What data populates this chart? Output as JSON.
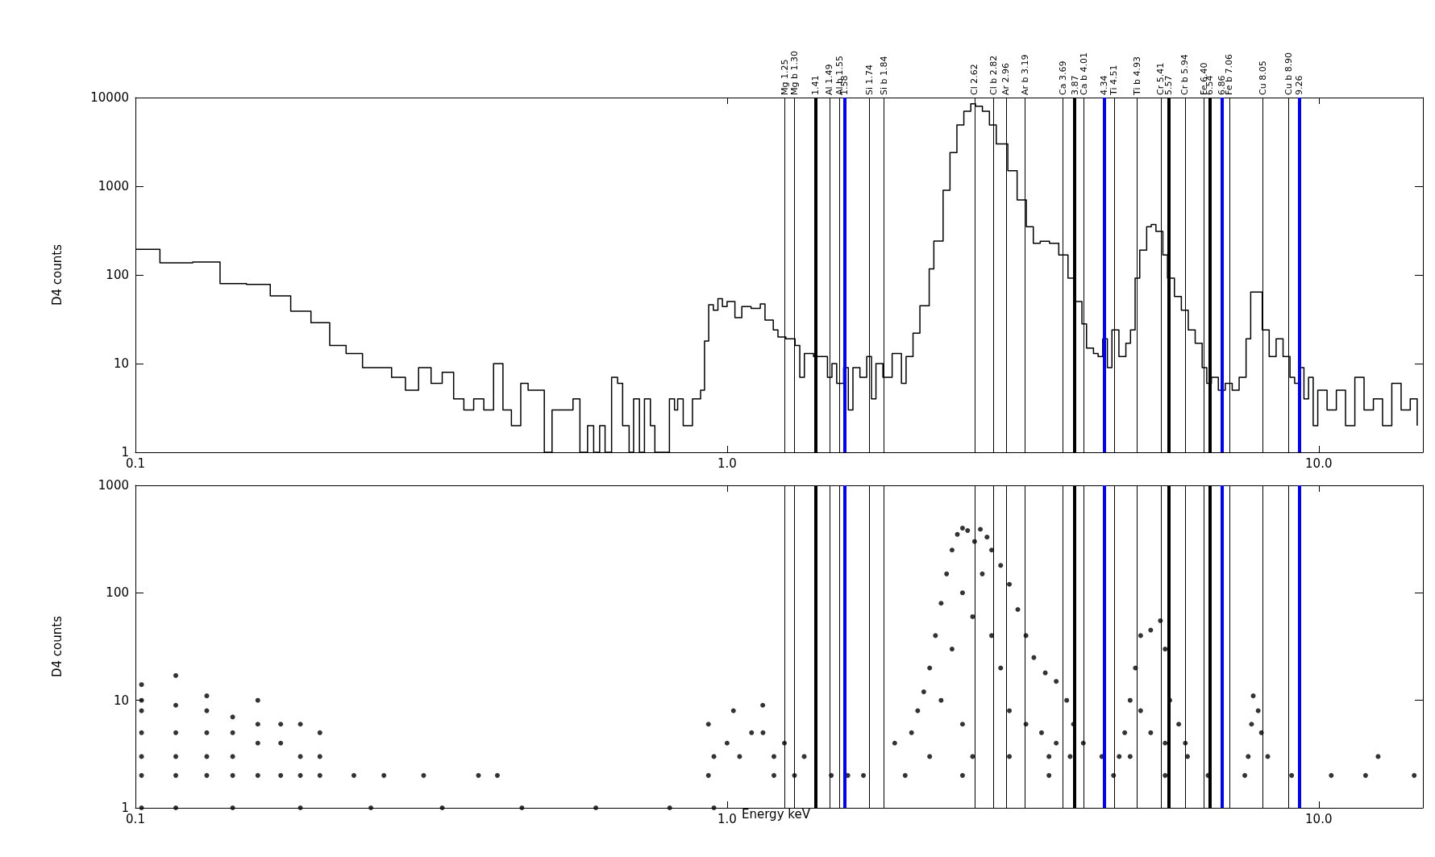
{
  "chart_data": [
    {
      "type": "step",
      "ylabel": "D4 counts",
      "xlim": [
        0.1,
        15
      ],
      "ylim": [
        1,
        10000
      ],
      "log": "xy",
      "grid": false,
      "xticks": [
        {
          "value": 0.1,
          "label": "0.1"
        },
        {
          "value": 1,
          "label": "1.0"
        },
        {
          "value": 10,
          "label": "10.0"
        }
      ],
      "yticks": [
        1,
        10,
        100,
        1000,
        10000
      ],
      "series": [
        {
          "color": "#000000",
          "x": [
            0.1,
            0.11,
            0.125,
            0.139,
            0.154,
            0.169,
            0.183,
            0.198,
            0.213,
            0.227,
            0.242,
            0.271,
            0.286,
            0.301,
            0.316,
            0.33,
            0.345,
            0.359,
            0.373,
            0.388,
            0.403,
            0.418,
            0.432,
            0.448,
            0.461,
            0.491,
            0.506,
            0.549,
            0.564,
            0.581,
            0.595,
            0.609,
            0.622,
            0.638,
            0.653,
            0.666,
            0.683,
            0.695,
            0.711,
            0.725,
            0.742,
            0.755,
            0.799,
            0.815,
            0.825,
            0.843,
            0.874,
            0.902,
            0.916,
            0.931,
            0.948,
            0.965,
            0.982,
            1.0,
            1.031,
            1.059,
            1.098,
            1.138,
            1.159,
            1.197,
            1.219,
            1.257,
            1.303,
            1.327,
            1.351,
            1.4,
            1.478,
            1.504,
            1.532,
            1.574,
            1.603,
            1.632,
            1.677,
            1.722,
            1.754,
            1.785,
            1.834,
            1.901,
            1.971,
            2.007,
            2.062,
            2.118,
            2.196,
            2.236,
            2.318,
            2.381,
            2.446,
            2.513,
            2.582,
            2.63,
            2.701,
            2.776,
            2.851,
            2.982,
            3.092,
            3.205,
            3.293,
            3.383,
            3.507,
            3.636,
            3.769,
            3.873,
            3.979,
            4.051,
            4.162,
            4.238,
            4.314,
            4.393,
            4.472,
            4.595,
            4.721,
            4.807,
            4.894,
            4.983,
            5.119,
            5.212,
            5.307,
            5.452,
            5.551,
            5.703,
            5.859,
            6.019,
            6.183,
            6.353,
            6.468,
            6.586,
            6.766,
            6.951,
            7.141,
            7.336,
            7.537,
            7.674,
            7.884,
            8.027,
            8.246,
            8.472,
            8.704,
            8.942,
            9.106,
            9.272,
            9.441,
            9.612,
            9.787,
            9.963,
            10.33,
            10.71,
            11.1,
            11.51,
            11.93,
            12.37,
            12.82,
            13.29,
            13.78,
            14.28,
            14.67
          ],
          "values": [
            194,
            137,
            140,
            80,
            78,
            58,
            39,
            29,
            16,
            13,
            9,
            7,
            5,
            9,
            6,
            8,
            4,
            3,
            4,
            3,
            10,
            3,
            2,
            6,
            5,
            1,
            3,
            4,
            1,
            2,
            1,
            2,
            1,
            7,
            6,
            2,
            1,
            4,
            1,
            4,
            2,
            1,
            4,
            3,
            4,
            2,
            4,
            5,
            18,
            46,
            40,
            54,
            44,
            50,
            33,
            44,
            42,
            47,
            31,
            24,
            20,
            19,
            16,
            7,
            13,
            12,
            7,
            10,
            6,
            9,
            3,
            9,
            7,
            12,
            4,
            10,
            7,
            13,
            6,
            12,
            22,
            45,
            117,
            241,
            900,
            2400,
            4900,
            7000,
            8500,
            8000,
            7000,
            4900,
            3000,
            1500,
            700,
            350,
            227,
            240,
            227,
            168,
            92,
            50,
            28,
            15,
            13,
            12,
            19,
            9,
            24,
            12,
            17,
            24,
            92,
            190,
            350,
            370,
            310,
            168,
            92,
            57,
            40,
            24,
            17,
            9,
            6,
            7,
            5,
            6,
            5,
            7,
            19,
            64,
            64,
            24,
            12,
            19,
            12,
            7,
            6,
            9,
            4,
            7,
            2,
            5,
            3,
            5,
            2,
            7,
            3,
            4,
            2,
            6,
            3,
            4,
            2
          ]
        }
      ],
      "ref_lines": [
        {
          "axis": "x",
          "value": 1.25,
          "label": "Mg 1.25"
        },
        {
          "axis": "x",
          "value": 1.3,
          "label": "Mg b 1.30"
        },
        {
          "axis": "x",
          "value": 1.41,
          "label": "1.41",
          "color": "#000000"
        },
        {
          "axis": "x",
          "value": 1.49,
          "label": "Al 1.49"
        },
        {
          "axis": "x",
          "value": 1.55,
          "label": "Al b 1.55"
        },
        {
          "axis": "x",
          "value": 1.58,
          "label": "1.58",
          "color": "#0000ff"
        },
        {
          "axis": "x",
          "value": 1.74,
          "label": "Si 1.74"
        },
        {
          "axis": "x",
          "value": 1.84,
          "label": "Si b 1.84"
        },
        {
          "axis": "x",
          "value": 2.62,
          "label": "Cl 2.62"
        },
        {
          "axis": "x",
          "value": 2.82,
          "label": "Cl b 2.82"
        },
        {
          "axis": "x",
          "value": 2.96,
          "label": "Ar 2.96"
        },
        {
          "axis": "x",
          "value": 3.19,
          "label": "Ar b 3.19"
        },
        {
          "axis": "x",
          "value": 3.69,
          "label": "Ca 3.69"
        },
        {
          "axis": "x",
          "value": 3.87,
          "label": "3.87",
          "color": "#000000"
        },
        {
          "axis": "x",
          "value": 4.01,
          "label": "Ca b 4.01"
        },
        {
          "axis": "x",
          "value": 4.34,
          "label": "4.34",
          "color": "#0000ff"
        },
        {
          "axis": "x",
          "value": 4.51,
          "label": "Ti 4.51"
        },
        {
          "axis": "x",
          "value": 4.93,
          "label": "Ti b 4.93"
        },
        {
          "axis": "x",
          "value": 5.41,
          "label": "Cr 5.41"
        },
        {
          "axis": "x",
          "value": 5.57,
          "label": "5.57",
          "color": "#000000"
        },
        {
          "axis": "x",
          "value": 5.94,
          "label": "Cr b 5.94"
        },
        {
          "axis": "x",
          "value": 6.4,
          "label": "Fe 6.40"
        },
        {
          "axis": "x",
          "value": 6.54,
          "label": "6.54",
          "color": "#000000"
        },
        {
          "axis": "x",
          "value": 6.86,
          "label": "6.86",
          "color": "#0000ff"
        },
        {
          "axis": "x",
          "value": 7.06,
          "label": "Fe b 7.06"
        },
        {
          "axis": "x",
          "value": 8.05,
          "label": "Cu 8.05"
        },
        {
          "axis": "x",
          "value": 8.9,
          "label": "Cu b 8.90"
        },
        {
          "axis": "x",
          "value": 9.26,
          "label": "9.26",
          "color": "#0000ff"
        }
      ]
    },
    {
      "type": "scatter",
      "xlabel": "Energy keV",
      "ylabel": "D4 counts",
      "xlim": [
        0.1,
        15
      ],
      "ylim": [
        1,
        1000
      ],
      "log": "xy",
      "grid": false,
      "marker": "circle",
      "xticks": [
        {
          "value": 0.1,
          "label": "0.1"
        },
        {
          "value": 1,
          "label": "1.0"
        },
        {
          "value": 10,
          "label": "10.0"
        }
      ],
      "yticks": [
        1,
        10,
        100,
        1000
      ],
      "series": [
        {
          "color": "#000000",
          "x": [
            0.1024,
            0.1024,
            0.1024,
            0.1024,
            0.1024,
            0.1024,
            0.117,
            0.117,
            0.117,
            0.117,
            0.117,
            0.132,
            0.132,
            0.132,
            0.132,
            0.132,
            0.146,
            0.146,
            0.146,
            0.146,
            0.161,
            0.161,
            0.161,
            0.161,
            0.176,
            0.176,
            0.176,
            0.19,
            0.19,
            0.19,
            0.205,
            0.205,
            0.205,
            0.234,
            0.263,
            0.307,
            0.38,
            0.409,
            0.1024,
            0.117,
            0.146,
            0.19,
            0.25,
            0.33,
            0.45,
            0.6,
            0.8,
            0.95,
            0.93,
            0.93,
            0.95,
            1.0,
            1.025,
            1.05,
            1.1,
            1.149,
            1.15,
            1.2,
            1.25,
            1.3,
            1.35,
            1.5,
            1.7,
            2.0,
            1.92,
            2.05,
            2.1,
            2.15,
            2.2,
            2.25,
            2.3,
            2.35,
            2.4,
            2.45,
            2.5,
            2.55,
            2.62,
            2.68,
            2.75,
            2.8,
            2.9,
            3.0,
            3.1,
            3.2,
            3.3,
            3.45,
            3.6,
            3.75,
            3.85,
            4.0,
            4.3,
            2.3,
            2.4,
            2.5,
            2.6,
            2.7,
            2.8,
            2.9,
            3.0,
            3.2,
            3.4,
            3.6,
            3.8,
            2.5,
            2.2,
            2.6,
            3.0,
            3.5,
            4.6,
            4.7,
            4.8,
            4.9,
            5.0,
            5.2,
            5.4,
            5.5,
            5.6,
            5.8,
            5.95,
            6.0,
            5.0,
            5.2,
            5.5,
            4.8,
            7.6,
            7.7,
            7.75,
            7.9,
            8.0,
            8.2,
            1.2,
            1.6,
            2.5,
            3.5,
            4.5,
            5.5,
            6.5,
            7.5,
            9.0,
            10.5,
            12.0,
            14.5,
            12.6
          ],
          "values": [
            2,
            3,
            5,
            8,
            10,
            14,
            2,
            3,
            5,
            9,
            17,
            2,
            3,
            5,
            8,
            11,
            2,
            3,
            5,
            7,
            2,
            4,
            6,
            10,
            2,
            4,
            6,
            2,
            3,
            6,
            2,
            3,
            5,
            2,
            2,
            2,
            2,
            2,
            1,
            1,
            1,
            1,
            1,
            1,
            1,
            1,
            1,
            1,
            2,
            6,
            3,
            4,
            8,
            3,
            5,
            9,
            5,
            3,
            4,
            2,
            3,
            2,
            2,
            2,
            4,
            5,
            8,
            12,
            20,
            40,
            80,
            150,
            250,
            350,
            400,
            380,
            300,
            390,
            330,
            250,
            180,
            120,
            70,
            40,
            25,
            18,
            15,
            10,
            6,
            4,
            3,
            10,
            30,
            100,
            60,
            150,
            40,
            20,
            8,
            6,
            5,
            4,
            3,
            6,
            3,
            3,
            3,
            3,
            3,
            5,
            10,
            20,
            40,
            45,
            55,
            30,
            10,
            6,
            4,
            3,
            8,
            5,
            4,
            3,
            3,
            6,
            11,
            8,
            5,
            3,
            2,
            2,
            2,
            2,
            2,
            2,
            2,
            2,
            2,
            2,
            2,
            2,
            3
          ]
        }
      ],
      "ref_lines": [
        {
          "axis": "x",
          "value": 1.25
        },
        {
          "axis": "x",
          "value": 1.3
        },
        {
          "axis": "x",
          "value": 1.41,
          "color": "#000000"
        },
        {
          "axis": "x",
          "value": 1.49
        },
        {
          "axis": "x",
          "value": 1.55
        },
        {
          "axis": "x",
          "value": 1.58,
          "color": "#0000ff"
        },
        {
          "axis": "x",
          "value": 1.74
        },
        {
          "axis": "x",
          "value": 1.84
        },
        {
          "axis": "x",
          "value": 2.62
        },
        {
          "axis": "x",
          "value": 2.82
        },
        {
          "axis": "x",
          "value": 2.96
        },
        {
          "axis": "x",
          "value": 3.19
        },
        {
          "axis": "x",
          "value": 3.69
        },
        {
          "axis": "x",
          "value": 3.87,
          "color": "#000000"
        },
        {
          "axis": "x",
          "value": 4.01
        },
        {
          "axis": "x",
          "value": 4.34,
          "color": "#0000ff"
        },
        {
          "axis": "x",
          "value": 4.51
        },
        {
          "axis": "x",
          "value": 4.93
        },
        {
          "axis": "x",
          "value": 5.41
        },
        {
          "axis": "x",
          "value": 5.57,
          "color": "#000000"
        },
        {
          "axis": "x",
          "value": 5.94
        },
        {
          "axis": "x",
          "value": 6.4
        },
        {
          "axis": "x",
          "value": 6.54,
          "color": "#000000"
        },
        {
          "axis": "x",
          "value": 6.86,
          "color": "#0000ff"
        },
        {
          "axis": "x",
          "value": 7.06
        },
        {
          "axis": "x",
          "value": 8.05
        },
        {
          "axis": "x",
          "value": 8.9
        },
        {
          "axis": "x",
          "value": 9.26,
          "color": "#0000ff"
        }
      ]
    }
  ]
}
